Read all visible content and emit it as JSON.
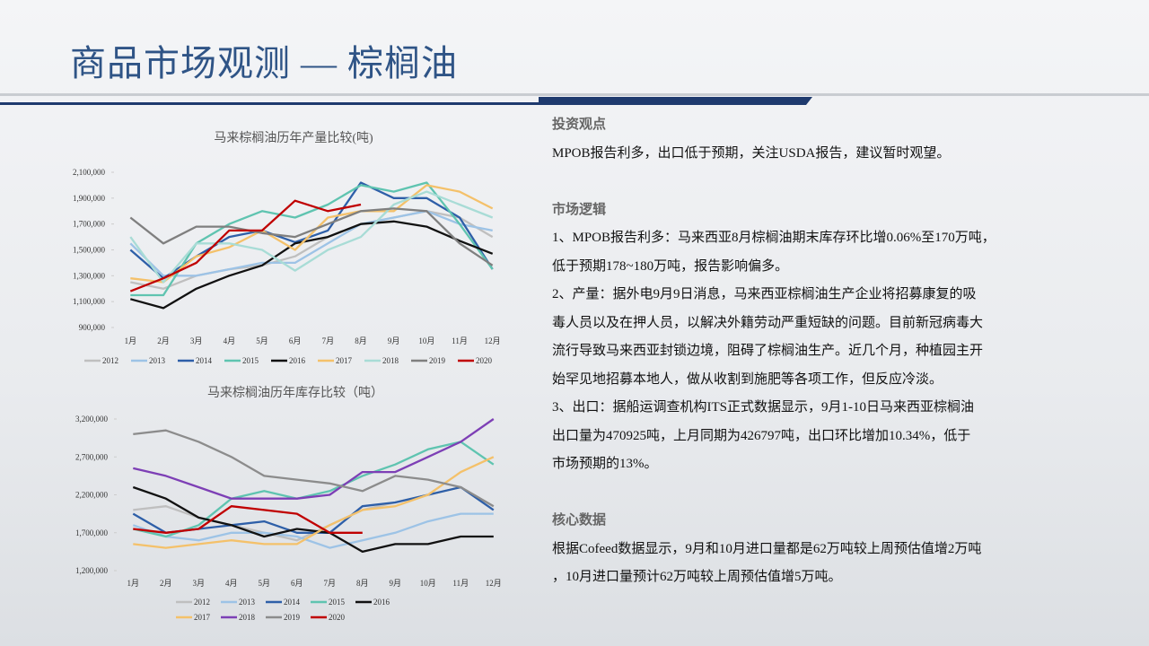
{
  "header": {
    "title": "商品市场观测 — 棕榈油"
  },
  "chart_data": [
    {
      "type": "line",
      "title": "马来棕榈油历年产量比较(吨)",
      "categories": [
        "1月",
        "2月",
        "3月",
        "4月",
        "5月",
        "6月",
        "7月",
        "8月",
        "9月",
        "10月",
        "11月",
        "12月"
      ],
      "ylim": [
        900000,
        2100000
      ],
      "yticks": [
        {
          "value": 900000,
          "label": "900,000"
        },
        {
          "value": 1100000,
          "label": "1,100,000"
        },
        {
          "value": 1300000,
          "label": "1,300,000"
        },
        {
          "value": 1500000,
          "label": "1,500,000"
        },
        {
          "value": 1700000,
          "label": "1,700,000"
        },
        {
          "value": 1900000,
          "label": "1,900,000"
        },
        {
          "value": 2100000,
          "label": "2,100,000"
        }
      ],
      "series": [
        {
          "name": "2012",
          "color": "#bfbfbf",
          "values": [
            1250000,
            1200000,
            1300000,
            1350000,
            1380000,
            1450000,
            1600000,
            1700000,
            1750000,
            1800000,
            1750000,
            1600000
          ]
        },
        {
          "name": "2013",
          "color": "#9dc3e6",
          "values": [
            1550000,
            1300000,
            1300000,
            1350000,
            1400000,
            1400000,
            1550000,
            1700000,
            1750000,
            1800000,
            1700000,
            1650000
          ]
        },
        {
          "name": "2014",
          "color": "#2e5fa8",
          "values": [
            1500000,
            1280000,
            1450000,
            1600000,
            1650000,
            1560000,
            1650000,
            2020000,
            1900000,
            1900000,
            1750000,
            1350000
          ]
        },
        {
          "name": "2015",
          "color": "#5fc4b0",
          "values": [
            1150000,
            1150000,
            1550000,
            1700000,
            1800000,
            1750000,
            1850000,
            2000000,
            1950000,
            2020000,
            1700000,
            1350000
          ]
        },
        {
          "name": "2016",
          "color": "#111111",
          "values": [
            1120000,
            1050000,
            1200000,
            1300000,
            1380000,
            1550000,
            1600000,
            1700000,
            1720000,
            1680000,
            1570000,
            1470000
          ]
        },
        {
          "name": "2017",
          "color": "#f4c16a",
          "values": [
            1280000,
            1250000,
            1450000,
            1520000,
            1650000,
            1500000,
            1750000,
            1800000,
            1800000,
            2000000,
            1950000,
            1820000
          ]
        },
        {
          "name": "2018",
          "color": "#a8dcd6",
          "values": [
            1600000,
            1250000,
            1550000,
            1550000,
            1500000,
            1340000,
            1500000,
            1600000,
            1850000,
            1950000,
            1850000,
            1750000
          ]
        },
        {
          "name": "2019",
          "color": "#7f7f7f",
          "values": [
            1750000,
            1550000,
            1680000,
            1680000,
            1630000,
            1600000,
            1700000,
            1800000,
            1820000,
            1800000,
            1550000,
            1380000
          ]
        },
        {
          "name": "2020",
          "color": "#c00000",
          "values": [
            1180000,
            1280000,
            1400000,
            1650000,
            1650000,
            1880000,
            1800000,
            1850000,
            null,
            null,
            null,
            null
          ]
        }
      ]
    },
    {
      "type": "line",
      "title": "马来棕榈油历年库存比较（吨）",
      "categories": [
        "1月",
        "2月",
        "3月",
        "4月",
        "5月",
        "6月",
        "7月",
        "8月",
        "9月",
        "10月",
        "11月",
        "12月"
      ],
      "ylim": [
        1200000,
        3200000
      ],
      "yticks": [
        {
          "value": 1200000,
          "label": "1,200,000"
        },
        {
          "value": 1700000,
          "label": "1,700,000"
        },
        {
          "value": 2200000,
          "label": "2,200,000"
        },
        {
          "value": 2700000,
          "label": "2,700,000"
        },
        {
          "value": 3200000,
          "label": "3,200,000"
        }
      ],
      "series": [
        {
          "name": "2012",
          "color": "#bfbfbf",
          "values": [
            2000000,
            2050000,
            1900000,
            1800000,
            1700000,
            1600000,
            1800000,
            2000000,
            2100000,
            2200000,
            2300000,
            2050000
          ]
        },
        {
          "name": "2013",
          "color": "#9dc3e6",
          "values": [
            1800000,
            1650000,
            1600000,
            1700000,
            1700000,
            1650000,
            1500000,
            1600000,
            1700000,
            1850000,
            1950000,
            1950000
          ]
        },
        {
          "name": "2014",
          "color": "#2e5fa8",
          "values": [
            1950000,
            1700000,
            1750000,
            1800000,
            1850000,
            1700000,
            1700000,
            2050000,
            2100000,
            2200000,
            2300000,
            2000000
          ]
        },
        {
          "name": "2015",
          "color": "#5fc4b0",
          "values": [
            1750000,
            1650000,
            1800000,
            2150000,
            2250000,
            2150000,
            2250000,
            2450000,
            2600000,
            2800000,
            2900000,
            2600000
          ]
        },
        {
          "name": "2016",
          "color": "#111111",
          "values": [
            2300000,
            2150000,
            1900000,
            1800000,
            1650000,
            1750000,
            1700000,
            1450000,
            1550000,
            1550000,
            1650000,
            1650000
          ]
        },
        {
          "name": "2017",
          "color": "#f4c16a",
          "values": [
            1550000,
            1500000,
            1550000,
            1600000,
            1550000,
            1550000,
            1800000,
            2000000,
            2050000,
            2200000,
            2500000,
            2700000
          ]
        },
        {
          "name": "2018",
          "color": "#7d3fb5",
          "values": [
            2550000,
            2450000,
            2300000,
            2150000,
            2150000,
            2150000,
            2200000,
            2500000,
            2500000,
            2700000,
            2900000,
            3200000
          ]
        },
        {
          "name": "2019",
          "color": "#8c8c8c",
          "values": [
            3000000,
            3050000,
            2900000,
            2700000,
            2450000,
            2400000,
            2350000,
            2250000,
            2450000,
            2400000,
            2300000,
            2050000
          ]
        },
        {
          "name": "2020",
          "color": "#c00000",
          "values": [
            1750000,
            1700000,
            1750000,
            2050000,
            2000000,
            1950000,
            1700000,
            1700000,
            null,
            null,
            null,
            null
          ]
        }
      ]
    }
  ],
  "sections": [
    {
      "heading": "投资观点",
      "lines": [
        "MPOB报告利多，出口低于预期，关注USDA报告，建议暂时观望。"
      ]
    },
    {
      "heading": "市场逻辑",
      "lines": [
        "1、MPOB报告利多：马来西亚8月棕榈油期末库存环比增0.06%至170万吨，",
        "低于预期178~180万吨，报告影响偏多。",
        "2、产量：据外电9月9日消息，马来西亚棕榈油生产企业将招募康复的吸",
        "毒人员以及在押人员，以解决外籍劳动严重短缺的问题。目前新冠病毒大",
        "流行导致马来西亚封锁边境，阻碍了棕榈油生产。近几个月，种植园主开",
        "始罕见地招募本地人，做从收割到施肥等各项工作，但反应冷淡。",
        "3、出口：据船运调查机构ITS正式数据显示，9月1-10日马来西亚棕榈油",
        "出口量为470925吨，上月同期为426797吨，出口环比增加10.34%，低于",
        "市场预期的13%。"
      ]
    },
    {
      "heading": "核心数据",
      "lines": [
        "根据Cofeed数据显示，9月和10月进口量都是62万吨较上周预估值增2万吨",
        "，10月进口量预计62万吨较上周预估值增5万吨。"
      ]
    }
  ]
}
